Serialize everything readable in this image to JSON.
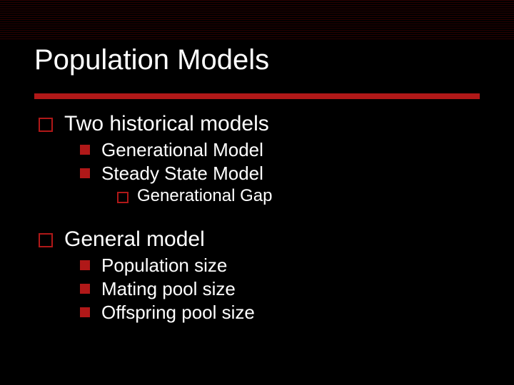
{
  "slide": {
    "title": "Population Models",
    "background_color": "#000000",
    "accent_color": "#b01818",
    "text_color": "#ffffff",
    "title_fontsize": 40,
    "lvl1_fontsize": 30,
    "lvl2_fontsize": 26,
    "lvl3_fontsize": 24,
    "underline_height": 8,
    "pinstripe_height": 56,
    "bullets": {
      "lvl1_style": "hollow-square",
      "lvl2_style": "filled-square",
      "lvl3_style": "hollow-square"
    },
    "items": [
      {
        "label": "Two historical models",
        "children": [
          {
            "label": "Generational Model"
          },
          {
            "label": "Steady State Model",
            "children": [
              {
                "label": "Generational Gap"
              }
            ]
          }
        ]
      },
      {
        "label": "General model",
        "children": [
          {
            "label": "Population size"
          },
          {
            "label": "Mating pool size"
          },
          {
            "label": "Offspring pool size"
          }
        ]
      }
    ]
  }
}
